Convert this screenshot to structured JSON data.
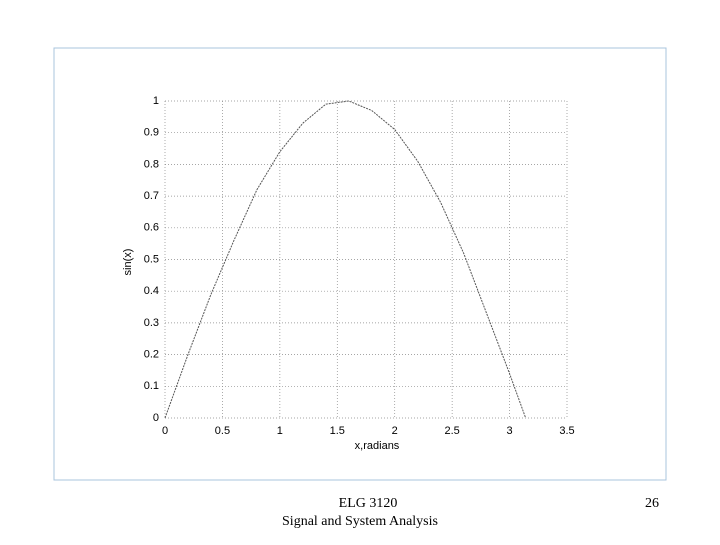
{
  "chart_data": {
    "type": "line",
    "xlabel": "x,radians",
    "ylabel": "sin(x)",
    "x": [
      0,
      0.2,
      0.4,
      0.6,
      0.8,
      1.0,
      1.2,
      1.4,
      1.6,
      1.8,
      2.0,
      2.2,
      2.4,
      2.6,
      2.8,
      3.0,
      3.14
    ],
    "values": [
      0,
      0.2,
      0.39,
      0.56,
      0.72,
      0.84,
      0.93,
      0.99,
      1.0,
      0.97,
      0.91,
      0.81,
      0.68,
      0.52,
      0.33,
      0.14,
      0.0
    ],
    "color": "#555555",
    "xlim": [
      0,
      3.5
    ],
    "xticks": [
      0,
      0.5,
      1,
      1.5,
      2,
      2.5,
      3,
      3.5
    ],
    "ylim": [
      0,
      1
    ],
    "yticks": [
      0,
      0.1,
      0.2,
      0.3,
      0.4,
      0.5,
      0.6,
      0.7,
      0.8,
      0.9,
      1
    ],
    "grid": true
  },
  "footer": {
    "course": "ELG 3120",
    "subtitle": "Signal and System Analysis",
    "page": 26
  }
}
